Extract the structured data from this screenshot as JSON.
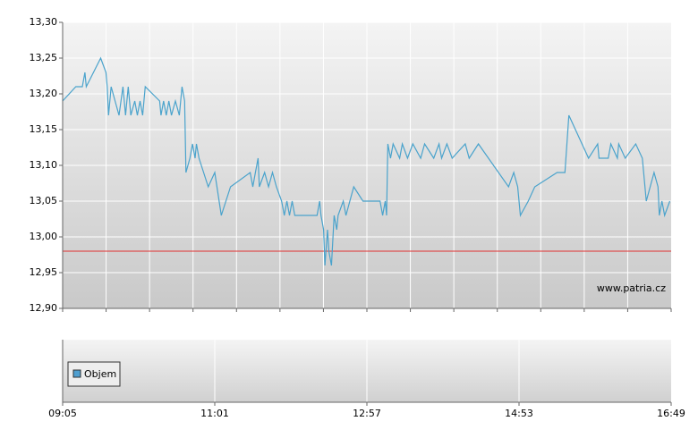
{
  "chart_data": [
    {
      "type": "line",
      "color": "#4aa3cc",
      "x": [
        "09:05",
        "09:15",
        "09:20",
        "09:22",
        "09:23",
        "09:34",
        "09:38",
        "09:39",
        "09:40",
        "09:42",
        "09:45",
        "09:48",
        "09:51",
        "09:53",
        "09:55",
        "09:57",
        "10:00",
        "10:02",
        "10:04",
        "10:06",
        "10:08",
        "10:19",
        "10:20",
        "10:22",
        "10:24",
        "10:26",
        "10:28",
        "10:31",
        "10:34",
        "10:36",
        "10:38",
        "10:39",
        "10:42",
        "10:44",
        "10:46",
        "10:47",
        "10:49",
        "10:56",
        "11:01",
        "11:06",
        "11:13",
        "11:28",
        "11:30",
        "11:32",
        "11:34",
        "11:35",
        "11:39",
        "11:42",
        "11:45",
        "11:48",
        "11:52",
        "11:54",
        "11:56",
        "11:58",
        "12:00",
        "12:02",
        "12:19",
        "12:21",
        "12:22",
        "12:24",
        "12:25",
        "12:27",
        "12:28",
        "12:30",
        "12:32",
        "12:34",
        "12:35",
        "12:39",
        "12:41",
        "12:47",
        "12:54",
        "13:07",
        "13:09",
        "13:11",
        "13:12",
        "13:13",
        "13:15",
        "13:17",
        "13:22",
        "13:24",
        "13:28",
        "13:32",
        "13:38",
        "13:41",
        "13:48",
        "13:52",
        "13:54",
        "13:58",
        "14:02",
        "14:12",
        "14:15",
        "14:22",
        "14:45",
        "14:49",
        "14:52",
        "14:53",
        "14:54",
        "15:00",
        "15:05",
        "15:22",
        "15:28",
        "15:31",
        "15:46",
        "15:53",
        "15:54",
        "16:01",
        "16:03",
        "16:08",
        "16:09",
        "16:14",
        "16:22",
        "16:27",
        "16:30",
        "16:36",
        "16:39",
        "16:40",
        "16:42",
        "16:44",
        "16:48"
      ],
      "values": [
        13.19,
        13.21,
        13.21,
        13.23,
        13.21,
        13.25,
        13.23,
        13.21,
        13.17,
        13.21,
        13.19,
        13.17,
        13.21,
        13.17,
        13.21,
        13.17,
        13.19,
        13.17,
        13.19,
        13.17,
        13.21,
        13.19,
        13.17,
        13.19,
        13.17,
        13.19,
        13.17,
        13.19,
        13.17,
        13.21,
        13.19,
        13.09,
        13.11,
        13.13,
        13.11,
        13.13,
        13.11,
        13.07,
        13.09,
        13.03,
        13.07,
        13.09,
        13.07,
        13.09,
        13.11,
        13.07,
        13.09,
        13.07,
        13.09,
        13.07,
        13.05,
        13.03,
        13.05,
        13.03,
        13.05,
        13.03,
        13.03,
        13.05,
        13.03,
        13.01,
        12.96,
        13.01,
        12.98,
        12.96,
        13.03,
        13.01,
        13.03,
        13.05,
        13.03,
        13.07,
        13.05,
        13.05,
        13.03,
        13.05,
        13.03,
        13.13,
        13.11,
        13.13,
        13.11,
        13.13,
        13.11,
        13.13,
        13.11,
        13.13,
        13.11,
        13.13,
        13.11,
        13.13,
        13.11,
        13.13,
        13.11,
        13.13,
        13.07,
        13.09,
        13.07,
        13.05,
        13.03,
        13.05,
        13.07,
        13.09,
        13.09,
        13.17,
        13.11,
        13.13,
        13.11,
        13.11,
        13.13,
        13.11,
        13.13,
        13.11,
        13.13,
        13.11,
        13.05,
        13.09,
        13.07,
        13.03,
        13.05,
        13.03,
        13.05
      ],
      "xlim": [
        "09:05",
        "16:49"
      ],
      "ylim": [
        12.9,
        13.3
      ],
      "yticks": [
        {
          "value": 12.9,
          "label": "12,90"
        },
        {
          "value": 12.95,
          "label": "12,95"
        },
        {
          "value": 13.0,
          "label": "13,00"
        },
        {
          "value": 13.05,
          "label": "13,05"
        },
        {
          "value": 13.1,
          "label": "13,10"
        },
        {
          "value": 13.15,
          "label": "13,15"
        },
        {
          "value": 13.2,
          "label": "13,20"
        },
        {
          "value": 13.25,
          "label": "13,25"
        },
        {
          "value": 13.3,
          "label": "13,30"
        }
      ],
      "reference_line": {
        "value": 12.98,
        "color": "#e03030"
      },
      "watermark": "www.patria.cz",
      "grid": true
    },
    {
      "type": "bar",
      "series": [
        {
          "name": "Objem",
          "color": "#4f9fd0",
          "values": []
        }
      ],
      "xlim": [
        "09:05",
        "16:49"
      ],
      "xticks": [
        "09:05",
        "11:01",
        "12:57",
        "14:53",
        "16:49"
      ],
      "grid": true
    }
  ]
}
